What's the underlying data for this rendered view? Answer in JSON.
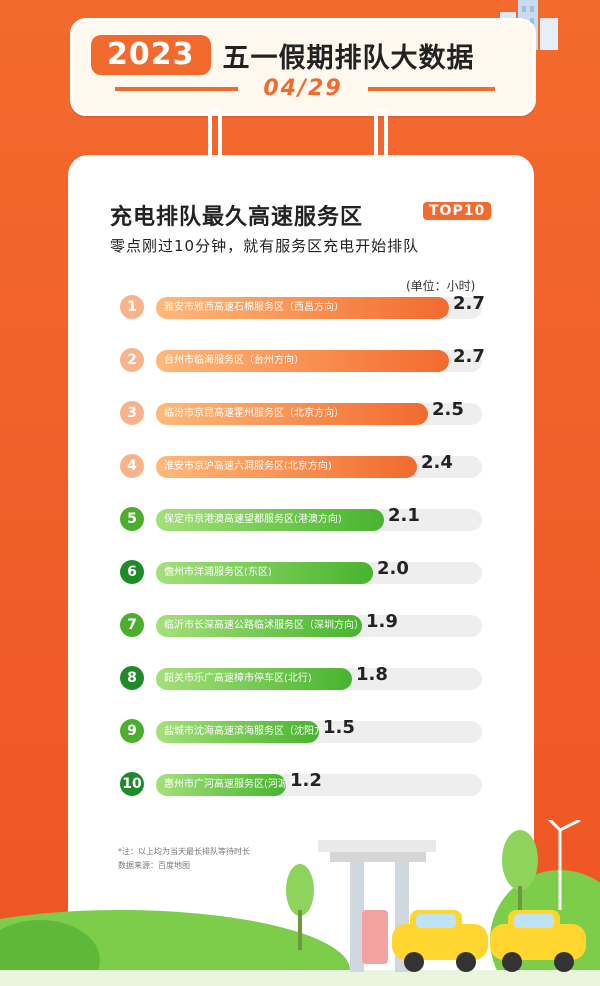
{
  "header": {
    "year": "2023",
    "title": "五一假期排队大数据",
    "date": "04/29"
  },
  "card": {
    "title": "充电排队最久高速服务区",
    "badge": "TOP10",
    "subtitle": "零点刚过10分钟，就有服务区充电开始排队",
    "unit": "(单位：小时)",
    "note_line1": "*注：以上均为当天最长排队等待时长",
    "note_line2": "数据来源：百度地图"
  },
  "chart_data": {
    "type": "bar",
    "orientation": "horizontal",
    "title": "充电排队最久高速服务区",
    "unit": "小时",
    "xlim": [
      0,
      3.0
    ],
    "categories": [
      "雅安市雅西高速石棉服务区（西昌方向）",
      "台州市临海服务区（台州方向）",
      "临汾市京昆高速霍州服务区（北京方向）",
      "淮安市京沪高速六洞服务区(北京方向)",
      "保定市京港澳高速望都服务区(港澳方向)",
      "儋州市洋浦服务区(东区)",
      "临沂市长深高速公路临沭服务区（深圳方向）",
      "韶关市乐广高速樟市停车区(北行)",
      "盐城市沈海高速滨海服务区（沈阳方向）",
      "惠州市广河高速服务区(河源方向)"
    ],
    "ranks": [
      "1",
      "2",
      "3",
      "4",
      "5",
      "6",
      "7",
      "8",
      "9",
      "10"
    ],
    "values": [
      2.7,
      2.7,
      2.5,
      2.4,
      2.1,
      2.0,
      1.9,
      1.8,
      1.5,
      1.2
    ],
    "value_labels": [
      "2.7",
      "2.7",
      "2.5",
      "2.4",
      "2.1",
      "2.0",
      "1.9",
      "1.8",
      "1.5",
      "1.2"
    ],
    "colors": {
      "top4": "#f26a2e",
      "rest": "#47b42e"
    }
  }
}
